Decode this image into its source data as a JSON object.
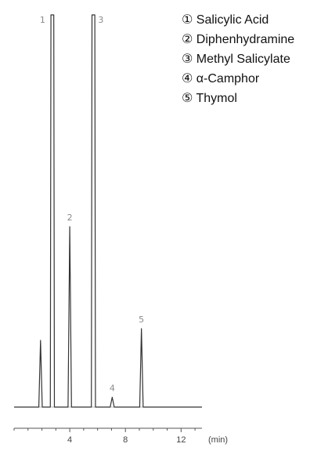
{
  "chart_data": {
    "type": "line",
    "title": "",
    "xlabel": "",
    "ylabel": "",
    "x_unit_label": "(min)",
    "xlim": [
      0,
      13.5
    ],
    "x_ticks": [
      4,
      8,
      12
    ],
    "x_tick_labels": [
      "4",
      "8",
      "12"
    ],
    "ylim": [
      0,
      100
    ],
    "grid": false,
    "legend_placement": "top-right",
    "series": [
      {
        "color": "#333333",
        "peaks": [
          {
            "label": "",
            "rt": 1.9,
            "height": 17
          },
          {
            "label": "1",
            "rt": 2.75,
            "height": 100
          },
          {
            "label": "2",
            "rt": 4.0,
            "height": 46
          },
          {
            "label": "3",
            "rt": 5.7,
            "height": 100
          },
          {
            "label": "4",
            "rt": 7.05,
            "height": 2.5
          },
          {
            "label": "5",
            "rt": 9.15,
            "height": 20
          }
        ]
      }
    ],
    "legend": [
      "① Salicylic Acid",
      "② Diphenhydramine",
      "③ Methyl Salicylate",
      "④ α-Camphor",
      "⑤ Thymol"
    ]
  }
}
